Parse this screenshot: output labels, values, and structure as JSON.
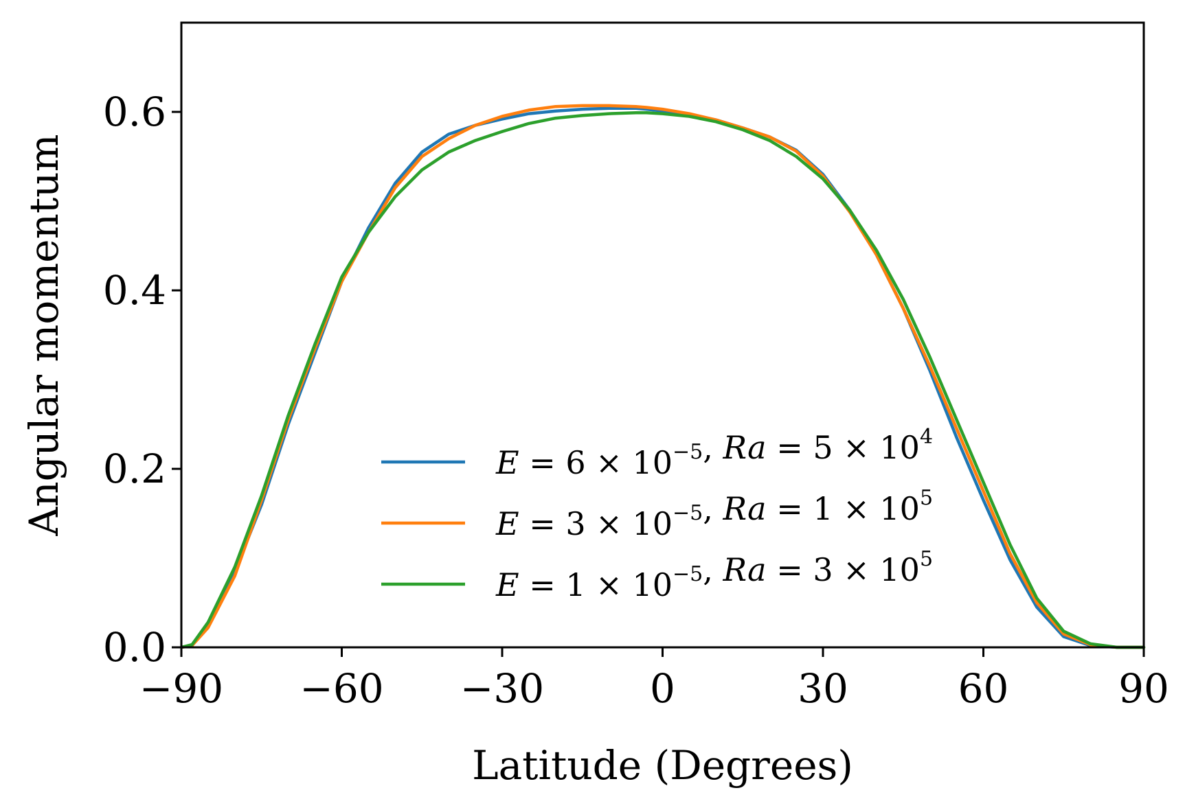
{
  "chart_data": {
    "type": "line",
    "xlabel": "Latitude (Degrees)",
    "ylabel": "Angular momentum",
    "xlim": [
      -90,
      90
    ],
    "ylim": [
      0,
      0.7
    ],
    "xticks": [
      -90,
      -60,
      -30,
      0,
      30,
      60,
      90
    ],
    "xtick_labels": [
      "−90",
      "−60",
      "−30",
      "0",
      "30",
      "60",
      "90"
    ],
    "yticks": [
      0.0,
      0.2,
      0.4,
      0.6
    ],
    "ytick_labels": [
      "0.0",
      "0.2",
      "0.4",
      "0.6"
    ],
    "grid": false,
    "legend_position": "lower-center",
    "series": [
      {
        "name": "E = 6 × 10⁻⁵, Ra = 5 × 10⁴",
        "legend": {
          "E": "6",
          "E_exp": "−5",
          "Ra": "5",
          "Ra_exp": "4"
        },
        "color": "#1f77b4",
        "x": [
          -90,
          -88,
          -85,
          -80,
          -75,
          -70,
          -65,
          -60,
          -55,
          -50,
          -45,
          -40,
          -35,
          -30,
          -25,
          -20,
          -15,
          -10,
          -5,
          -3,
          0,
          5,
          10,
          15,
          20,
          25,
          30,
          35,
          40,
          45,
          50,
          55,
          60,
          65,
          70,
          75,
          80,
          85,
          88,
          90
        ],
        "y": [
          0.0,
          0.002,
          0.025,
          0.085,
          0.16,
          0.25,
          0.33,
          0.41,
          0.47,
          0.52,
          0.555,
          0.575,
          0.585,
          0.592,
          0.598,
          0.601,
          0.603,
          0.604,
          0.604,
          0.603,
          0.601,
          0.597,
          0.591,
          0.582,
          0.572,
          0.557,
          0.53,
          0.49,
          0.44,
          0.38,
          0.31,
          0.235,
          0.165,
          0.098,
          0.045,
          0.012,
          0.002,
          0.0,
          0.0,
          0.0
        ]
      },
      {
        "name": "E = 3 × 10⁻⁵, Ra = 1 × 10⁵",
        "legend": {
          "E": "3",
          "E_exp": "−5",
          "Ra": "1",
          "Ra_exp": "5"
        },
        "color": "#ff7f0e",
        "x": [
          -90,
          -88,
          -85,
          -80,
          -75,
          -70,
          -65,
          -60,
          -55,
          -50,
          -45,
          -40,
          -35,
          -30,
          -25,
          -20,
          -15,
          -10,
          -5,
          -3,
          0,
          5,
          10,
          15,
          20,
          25,
          30,
          35,
          40,
          45,
          50,
          55,
          60,
          65,
          70,
          75,
          80,
          85,
          88,
          90
        ],
        "y": [
          0.0,
          0.002,
          0.022,
          0.08,
          0.165,
          0.255,
          0.335,
          0.41,
          0.465,
          0.515,
          0.55,
          0.57,
          0.585,
          0.595,
          0.602,
          0.606,
          0.607,
          0.607,
          0.606,
          0.605,
          0.603,
          0.598,
          0.591,
          0.582,
          0.572,
          0.556,
          0.528,
          0.488,
          0.44,
          0.38,
          0.315,
          0.245,
          0.175,
          0.105,
          0.05,
          0.015,
          0.003,
          0.0,
          0.0,
          0.0
        ]
      },
      {
        "name": "E = 1 × 10⁻⁵, Ra = 3 × 10⁵",
        "legend": {
          "E": "1",
          "E_exp": "−5",
          "Ra": "3",
          "Ra_exp": "5"
        },
        "color": "#2ca02c",
        "x": [
          -90,
          -88,
          -85,
          -80,
          -75,
          -70,
          -65,
          -60,
          -55,
          -50,
          -45,
          -40,
          -35,
          -30,
          -25,
          -20,
          -15,
          -10,
          -5,
          -3,
          0,
          5,
          10,
          15,
          20,
          25,
          30,
          35,
          40,
          45,
          50,
          55,
          60,
          65,
          70,
          75,
          80,
          85,
          88,
          90
        ],
        "y": [
          0.0,
          0.003,
          0.028,
          0.09,
          0.17,
          0.26,
          0.34,
          0.415,
          0.465,
          0.505,
          0.535,
          0.555,
          0.568,
          0.578,
          0.587,
          0.593,
          0.596,
          0.598,
          0.599,
          0.599,
          0.598,
          0.595,
          0.589,
          0.58,
          0.568,
          0.55,
          0.525,
          0.49,
          0.445,
          0.39,
          0.325,
          0.255,
          0.185,
          0.115,
          0.055,
          0.018,
          0.004,
          0.0,
          0.0,
          0.0
        ]
      }
    ]
  }
}
